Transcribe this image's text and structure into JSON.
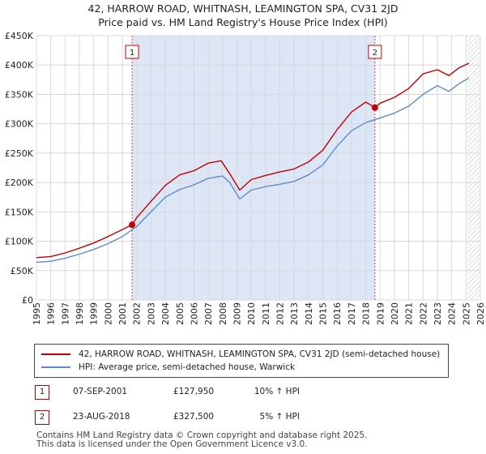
{
  "header": {
    "title": "42, HARROW ROAD, WHITNASH, LEAMINGTON SPA, CV31 2JD",
    "subtitle": "Price paid vs. HM Land Registry's House Price Index (HPI)"
  },
  "colors": {
    "property": "#c00000",
    "hpi": "#5b8ec8",
    "shade": "#dde6f6",
    "grid": "#d8d8d8"
  },
  "chart_data": {
    "type": "line",
    "title": "Price paid vs. HM Land Registry's House Price Index (HPI)",
    "xlabel": "",
    "ylabel": "",
    "xlim": [
      1995,
      2026
    ],
    "ylim": [
      0,
      450000
    ],
    "x_ticks": [
      "1995",
      "1996",
      "1997",
      "1998",
      "1999",
      "2000",
      "2001",
      "2002",
      "2003",
      "2004",
      "2005",
      "2006",
      "2007",
      "2008",
      "2009",
      "2010",
      "2011",
      "2012",
      "2013",
      "2014",
      "2015",
      "2016",
      "2017",
      "2018",
      "2019",
      "2020",
      "2021",
      "2022",
      "2023",
      "2024",
      "2025",
      "2026"
    ],
    "y_ticks": [
      {
        "value": 0,
        "label": "£0"
      },
      {
        "value": 50000,
        "label": "£50K"
      },
      {
        "value": 100000,
        "label": "£100K"
      },
      {
        "value": 150000,
        "label": "£150K"
      },
      {
        "value": 200000,
        "label": "£200K"
      },
      {
        "value": 250000,
        "label": "£250K"
      },
      {
        "value": 300000,
        "label": "£300K"
      },
      {
        "value": 350000,
        "label": "£350K"
      },
      {
        "value": 400000,
        "label": "£400K"
      },
      {
        "value": 450000,
        "label": "£450K"
      }
    ],
    "shaded_range": [
      2001.68,
      2018.64
    ],
    "future_hatch_from": 2025.1,
    "series": [
      {
        "name": "42, HARROW ROAD, WHITNASH, LEAMINGTON SPA, CV31 2JD (semi-detached house)",
        "color": "#c00000",
        "x": [
          1995,
          1996,
          1997,
          1998,
          1999,
          2000,
          2001,
          2001.68,
          2002,
          2003,
          2004,
          2005,
          2006,
          2007,
          2007.9,
          2008.5,
          2009.2,
          2010,
          2011,
          2012,
          2013,
          2014,
          2015,
          2016,
          2017,
          2018,
          2018.64,
          2019,
          2020,
          2021,
          2022,
          2023,
          2023.8,
          2024.5,
          2025.2
        ],
        "y": [
          72000,
          74000,
          80000,
          88000,
          97000,
          108000,
          120000,
          127950,
          140000,
          168000,
          195000,
          213000,
          220000,
          233000,
          237000,
          215000,
          187000,
          205000,
          212000,
          218000,
          223000,
          235000,
          255000,
          290000,
          320000,
          337000,
          327500,
          335000,
          345000,
          360000,
          385000,
          392000,
          382000,
          395000,
          403000
        ]
      },
      {
        "name": "HPI: Average price, semi-detached house, Warwick",
        "color": "#5b8ec8",
        "x": [
          1995,
          1996,
          1997,
          1998,
          1999,
          2000,
          2001,
          2002,
          2003,
          2004,
          2005,
          2006,
          2007,
          2008,
          2008.5,
          2009.2,
          2010,
          2011,
          2012,
          2013,
          2014,
          2015,
          2016,
          2017,
          2018,
          2019,
          2020,
          2021,
          2022,
          2023,
          2023.8,
          2024.5,
          2025.2
        ],
        "y": [
          64000,
          66000,
          71000,
          78000,
          86000,
          96000,
          108000,
          125000,
          150000,
          175000,
          188000,
          196000,
          207000,
          211000,
          200000,
          172000,
          187000,
          193000,
          197000,
          202000,
          213000,
          230000,
          262000,
          288000,
          302000,
          310000,
          318000,
          330000,
          350000,
          365000,
          355000,
          368000,
          378000
        ]
      }
    ],
    "sales": [
      {
        "label": "1",
        "x": 2001.68,
        "y": 127950
      },
      {
        "label": "2",
        "x": 2018.64,
        "y": 327500
      }
    ]
  },
  "legend": {
    "property_label": "42, HARROW ROAD, WHITNASH, LEAMINGTON SPA, CV31 2JD (semi-detached house)",
    "hpi_label": "HPI: Average price, semi-detached house, Warwick"
  },
  "transactions": [
    {
      "num": "1",
      "date": "07-SEP-2001",
      "price": "£127,950",
      "hpi": "10% ↑ HPI"
    },
    {
      "num": "2",
      "date": "23-AUG-2018",
      "price": "£327,500",
      "hpi": "5% ↑ HPI"
    }
  ],
  "footer": {
    "line1": "Contains HM Land Registry data © Crown copyright and database right 2025.",
    "line2": "This data is licensed under the Open Government Licence v3.0."
  }
}
